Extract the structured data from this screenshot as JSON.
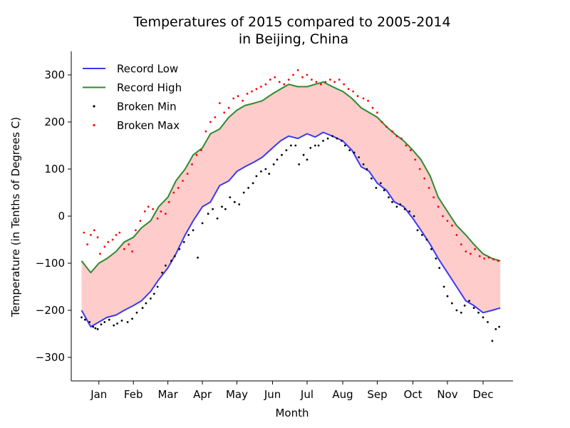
{
  "chart_data": {
    "type": "line",
    "title": "Temperatures of 2015 compared to 2005-2014",
    "subtitle": "in Beijing, China",
    "xlabel": "Month",
    "ylabel": "Temperature (in Tenths of Degrees C)",
    "ylim": [
      -350,
      350
    ],
    "xlim": [
      -9,
      375
    ],
    "yticks": [
      -300,
      -200,
      -100,
      0,
      100,
      200,
      300
    ],
    "ytick_labels": [
      "−300",
      "−200",
      "−100",
      "0",
      "100",
      "200",
      "300"
    ],
    "months": [
      "Jan",
      "Feb",
      "Mar",
      "Apr",
      "May",
      "Jun",
      "Jul",
      "Aug",
      "Sep",
      "Oct",
      "Nov",
      "Dec"
    ],
    "month_positions": [
      15,
      45,
      75,
      105,
      135,
      166,
      196,
      227,
      257,
      288,
      318,
      349
    ],
    "grid": false,
    "legend_position": "upper-left",
    "fill_between_color": "#ffcccc",
    "series": [
      {
        "name": "Record Low",
        "kind": "line",
        "color": "#3a3af0",
        "x": [
          0,
          8,
          15,
          22,
          30,
          37,
          45,
          52,
          60,
          67,
          75,
          82,
          90,
          97,
          105,
          112,
          120,
          128,
          135,
          142,
          150,
          157,
          166,
          173,
          180,
          188,
          196,
          203,
          210,
          218,
          227,
          235,
          243,
          250,
          257,
          265,
          272,
          280,
          288,
          295,
          303,
          310,
          318,
          326,
          334,
          341,
          349,
          357,
          364
        ],
        "y": [
          -200,
          -235,
          -225,
          -215,
          -210,
          -200,
          -190,
          -180,
          -160,
          -135,
          -110,
          -80,
          -40,
          -10,
          20,
          30,
          65,
          75,
          95,
          105,
          115,
          125,
          145,
          160,
          170,
          165,
          175,
          168,
          178,
          170,
          160,
          140,
          105,
          95,
          70,
          55,
          30,
          20,
          -5,
          -30,
          -60,
          -90,
          -120,
          -150,
          -180,
          -190,
          -205,
          -200,
          -195
        ]
      },
      {
        "name": "Record High",
        "kind": "line",
        "color": "#2e8b2e",
        "x": [
          0,
          8,
          15,
          22,
          30,
          37,
          45,
          52,
          60,
          67,
          75,
          82,
          90,
          97,
          105,
          112,
          120,
          128,
          135,
          142,
          150,
          157,
          166,
          173,
          180,
          188,
          196,
          203,
          210,
          218,
          227,
          235,
          243,
          250,
          257,
          265,
          272,
          280,
          288,
          295,
          303,
          310,
          318,
          326,
          334,
          341,
          349,
          357,
          364
        ],
        "y": [
          -95,
          -120,
          -100,
          -90,
          -75,
          -55,
          -45,
          -25,
          -10,
          20,
          40,
          75,
          100,
          130,
          145,
          175,
          185,
          210,
          225,
          235,
          240,
          245,
          260,
          270,
          280,
          275,
          275,
          280,
          285,
          275,
          265,
          250,
          230,
          220,
          210,
          190,
          175,
          160,
          140,
          120,
          85,
          40,
          10,
          -20,
          -40,
          -60,
          -80,
          -90,
          -95
        ]
      },
      {
        "name": "Broken Min",
        "kind": "scatter",
        "color": "#000000",
        "x": [
          0,
          3,
          7,
          10,
          12,
          14,
          17,
          20,
          24,
          28,
          31,
          35,
          40,
          44,
          48,
          53,
          56,
          60,
          63,
          66,
          70,
          73,
          78,
          81,
          85,
          89,
          93,
          97,
          101,
          105,
          110,
          114,
          118,
          122,
          125,
          129,
          133,
          137,
          141,
          145,
          149,
          152,
          156,
          160,
          163,
          167,
          170,
          174,
          178,
          182,
          186,
          189,
          193,
          196,
          199,
          203,
          206,
          210,
          214,
          218,
          222,
          226,
          229,
          233,
          237,
          241,
          245,
          248,
          252,
          256,
          260,
          263,
          267,
          270,
          274,
          277,
          281,
          285,
          289,
          292,
          296,
          300,
          304,
          308,
          311,
          315,
          318,
          322,
          326,
          330,
          333,
          337,
          341,
          345,
          349,
          353,
          357,
          360,
          363
        ],
        "y": [
          -215,
          -220,
          -225,
          -235,
          -238,
          -240,
          -230,
          -225,
          -220,
          -232,
          -228,
          -222,
          -225,
          -218,
          -205,
          -195,
          -185,
          -175,
          -165,
          -150,
          -120,
          -105,
          -95,
          -85,
          -70,
          -55,
          -40,
          -30,
          -88,
          -15,
          5,
          15,
          -5,
          20,
          15,
          40,
          30,
          25,
          50,
          60,
          70,
          85,
          95,
          100,
          90,
          110,
          120,
          130,
          140,
          150,
          150,
          110,
          130,
          120,
          145,
          150,
          150,
          160,
          165,
          170,
          165,
          160,
          150,
          140,
          135,
          125,
          110,
          100,
          80,
          60,
          70,
          55,
          40,
          30,
          20,
          25,
          15,
          10,
          0,
          -30,
          -40,
          -50,
          -70,
          -90,
          -110,
          -150,
          -170,
          -185,
          -200,
          -205,
          -190,
          -180,
          -195,
          -205,
          -215,
          -225,
          -265,
          -240,
          -235
        ]
      },
      {
        "name": "Broken Max",
        "kind": "scatter",
        "color": "#ff0000",
        "x": [
          2,
          5,
          8,
          11,
          14,
          16,
          20,
          23,
          27,
          30,
          33,
          37,
          41,
          44,
          47,
          51,
          55,
          58,
          62,
          66,
          69,
          73,
          76,
          80,
          84,
          88,
          92,
          96,
          100,
          104,
          108,
          112,
          116,
          120,
          124,
          128,
          132,
          136,
          140,
          144,
          148,
          152,
          156,
          160,
          164,
          168,
          172,
          176,
          180,
          184,
          188,
          192,
          196,
          200,
          204,
          208,
          212,
          216,
          220,
          224,
          228,
          232,
          236,
          240,
          245,
          249,
          253,
          257,
          261,
          265,
          270,
          274,
          278,
          282,
          286,
          290,
          294,
          298,
          302,
          306,
          310,
          314,
          318,
          322,
          326,
          330,
          334,
          338,
          342,
          346,
          350,
          354,
          358,
          362
        ],
        "y": [
          -35,
          -60,
          -40,
          -30,
          -45,
          -80,
          -65,
          -55,
          -50,
          -40,
          -35,
          -70,
          -60,
          -75,
          -30,
          -10,
          10,
          20,
          15,
          -5,
          10,
          5,
          30,
          50,
          60,
          75,
          90,
          110,
          130,
          140,
          180,
          200,
          210,
          240,
          220,
          230,
          250,
          255,
          245,
          260,
          265,
          270,
          275,
          280,
          290,
          295,
          285,
          280,
          290,
          300,
          310,
          295,
          300,
          290,
          285,
          280,
          285,
          290,
          285,
          290,
          280,
          270,
          265,
          255,
          250,
          245,
          230,
          220,
          200,
          190,
          180,
          170,
          165,
          150,
          140,
          120,
          100,
          80,
          60,
          40,
          20,
          0,
          -10,
          -20,
          -40,
          -60,
          -75,
          -80,
          -70,
          -85,
          -90,
          -88,
          -92,
          -95
        ]
      }
    ]
  }
}
